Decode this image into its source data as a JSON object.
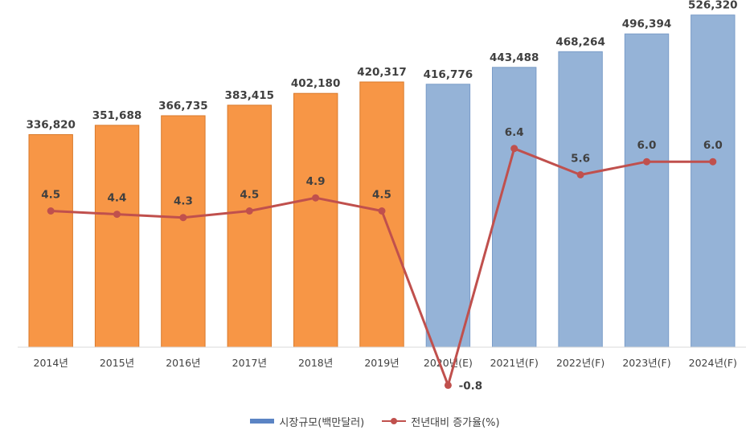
{
  "chart_data": {
    "type": "bar",
    "categories": [
      "2014년",
      "2015년",
      "2016년",
      "2017년",
      "2018년",
      "2019년",
      "2020년(E)",
      "2021년(F)",
      "2022년(F)",
      "2023년(F)",
      "2024년(F)"
    ],
    "series": [
      {
        "name": "시장규모(백만달러)",
        "type": "bar",
        "values": [
          336820,
          351688,
          366735,
          383415,
          402180,
          420317,
          416776,
          443488,
          468264,
          496394,
          526320
        ],
        "labels": [
          "336,820",
          "351,688",
          "366,735",
          "383,415",
          "402,180",
          "420,317",
          "416,776",
          "443,488",
          "468,264",
          "496,394",
          "526,320"
        ],
        "colors": [
          "#f79646",
          "#f79646",
          "#f79646",
          "#f79646",
          "#f79646",
          "#f79646",
          "#95b3d7",
          "#95b3d7",
          "#95b3d7",
          "#95b3d7",
          "#95b3d7"
        ],
        "ylim": [
          0,
          540000
        ]
      },
      {
        "name": "전년대비 증가율(%)",
        "type": "line",
        "values": [
          4.5,
          4.4,
          4.3,
          4.5,
          4.9,
          4.5,
          -0.8,
          6.4,
          5.6,
          6.0,
          6.0
        ],
        "labels": [
          "4.5",
          "4.4",
          "4.3",
          "4.5",
          "4.9",
          "4.5",
          "-0.8",
          "6.4",
          "5.6",
          "6.0",
          "6.0"
        ],
        "color": "#c0504d",
        "ylim": [
          -1.5,
          9.5
        ]
      }
    ],
    "legend": {
      "items": [
        "시장규모(백만달러)",
        "전년대비 증가율(%)"
      ],
      "position": "bottom"
    },
    "title": "",
    "xlabel": "",
    "ylabel": ""
  }
}
